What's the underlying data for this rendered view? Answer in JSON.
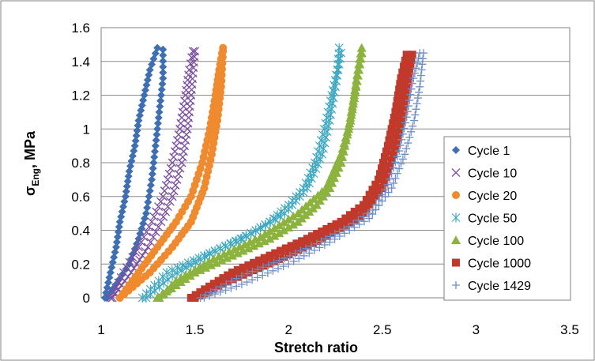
{
  "chart_data": {
    "type": "scatter",
    "title": "",
    "xlabel": "Stretch ratio",
    "ylabel_main": "σ",
    "ylabel_sub": "Eng",
    "ylabel_rest": ", MPa",
    "xlim": [
      1,
      3.5
    ],
    "ylim": [
      0,
      1.6
    ],
    "xticks": [
      "1",
      "1.5",
      "2",
      "2.5",
      "3",
      "3.5"
    ],
    "yticks": [
      "0",
      "0.2",
      "0.4",
      "0.6",
      "0.8",
      "1",
      "1.2",
      "1.4",
      "1.6"
    ],
    "grid": "horizontal",
    "legend_position": "right",
    "series": [
      {
        "name": "Cycle 1",
        "marker": "diamond",
        "color": "#3F6FB3",
        "loading": [
          [
            1.02,
            0
          ],
          [
            1.05,
            0.15
          ],
          [
            1.08,
            0.3
          ],
          [
            1.1,
            0.45
          ],
          [
            1.13,
            0.6
          ],
          [
            1.15,
            0.75
          ],
          [
            1.18,
            0.9
          ],
          [
            1.2,
            1.05
          ],
          [
            1.23,
            1.2
          ],
          [
            1.26,
            1.35
          ],
          [
            1.3,
            1.48
          ]
        ],
        "unloading": [
          [
            1.33,
            1.47
          ],
          [
            1.33,
            1.3
          ],
          [
            1.31,
            1.1
          ],
          [
            1.29,
            0.9
          ],
          [
            1.27,
            0.7
          ],
          [
            1.24,
            0.5
          ],
          [
            1.2,
            0.35
          ],
          [
            1.15,
            0.2
          ],
          [
            1.08,
            0.08
          ],
          [
            1.03,
            0
          ]
        ]
      },
      {
        "name": "Cycle 10",
        "marker": "x",
        "color": "#7B4FA0",
        "loading": [
          [
            1.05,
            0
          ],
          [
            1.12,
            0.15
          ],
          [
            1.2,
            0.3
          ],
          [
            1.27,
            0.45
          ],
          [
            1.33,
            0.6
          ],
          [
            1.38,
            0.8
          ],
          [
            1.42,
            1.0
          ],
          [
            1.45,
            1.2
          ],
          [
            1.47,
            1.35
          ],
          [
            1.49,
            1.46
          ]
        ],
        "unloading": [
          [
            1.5,
            1.46
          ],
          [
            1.48,
            1.2
          ],
          [
            1.46,
            1.0
          ],
          [
            1.43,
            0.8
          ],
          [
            1.38,
            0.6
          ],
          [
            1.32,
            0.45
          ],
          [
            1.25,
            0.3
          ],
          [
            1.16,
            0.15
          ],
          [
            1.06,
            0
          ]
        ]
      },
      {
        "name": "Cycle 20",
        "marker": "circle",
        "color": "#F08A2E",
        "loading": [
          [
            1.1,
            0
          ],
          [
            1.2,
            0.15
          ],
          [
            1.3,
            0.3
          ],
          [
            1.4,
            0.45
          ],
          [
            1.48,
            0.6
          ],
          [
            1.54,
            0.8
          ],
          [
            1.58,
            1.0
          ],
          [
            1.61,
            1.2
          ],
          [
            1.63,
            1.35
          ],
          [
            1.65,
            1.48
          ]
        ],
        "unloading": [
          [
            1.65,
            1.46
          ],
          [
            1.64,
            1.25
          ],
          [
            1.62,
            1.05
          ],
          [
            1.59,
            0.85
          ],
          [
            1.55,
            0.65
          ],
          [
            1.48,
            0.45
          ],
          [
            1.38,
            0.3
          ],
          [
            1.26,
            0.15
          ],
          [
            1.1,
            0
          ]
        ]
      },
      {
        "name": "Cycle 50",
        "marker": "asterisk",
        "color": "#3FA9C2",
        "loading": [
          [
            1.22,
            0
          ],
          [
            1.35,
            0.15
          ],
          [
            1.55,
            0.25
          ],
          [
            1.75,
            0.35
          ],
          [
            1.9,
            0.45
          ],
          [
            2.0,
            0.55
          ],
          [
            2.08,
            0.65
          ],
          [
            2.14,
            0.8
          ],
          [
            2.19,
            1.0
          ],
          [
            2.23,
            1.2
          ],
          [
            2.26,
            1.35
          ],
          [
            2.27,
            1.48
          ]
        ],
        "unloading": [
          [
            2.28,
            1.45
          ],
          [
            2.25,
            1.25
          ],
          [
            2.22,
            1.05
          ],
          [
            2.18,
            0.85
          ],
          [
            2.1,
            0.65
          ],
          [
            1.98,
            0.5
          ],
          [
            1.8,
            0.38
          ],
          [
            1.58,
            0.26
          ],
          [
            1.38,
            0.13
          ],
          [
            1.24,
            0
          ]
        ]
      },
      {
        "name": "Cycle 100",
        "marker": "triangle",
        "color": "#8DB33F",
        "loading": [
          [
            1.3,
            0
          ],
          [
            1.5,
            0.15
          ],
          [
            1.7,
            0.25
          ],
          [
            1.9,
            0.35
          ],
          [
            2.05,
            0.45
          ],
          [
            2.15,
            0.55
          ],
          [
            2.22,
            0.65
          ],
          [
            2.28,
            0.8
          ],
          [
            2.32,
            1.0
          ],
          [
            2.35,
            1.2
          ],
          [
            2.37,
            1.35
          ],
          [
            2.39,
            1.48
          ]
        ],
        "unloading": [
          [
            2.39,
            1.45
          ],
          [
            2.36,
            1.25
          ],
          [
            2.33,
            1.05
          ],
          [
            2.28,
            0.85
          ],
          [
            2.2,
            0.65
          ],
          [
            2.05,
            0.5
          ],
          [
            1.85,
            0.36
          ],
          [
            1.6,
            0.23
          ],
          [
            1.4,
            0.1
          ],
          [
            1.31,
            0
          ]
        ]
      },
      {
        "name": "Cycle 1000",
        "marker": "square",
        "color": "#C0392B",
        "loading": [
          [
            1.48,
            0
          ],
          [
            1.7,
            0.15
          ],
          [
            1.9,
            0.25
          ],
          [
            2.1,
            0.35
          ],
          [
            2.28,
            0.45
          ],
          [
            2.4,
            0.55
          ],
          [
            2.48,
            0.7
          ],
          [
            2.53,
            0.9
          ],
          [
            2.57,
            1.1
          ],
          [
            2.6,
            1.3
          ],
          [
            2.63,
            1.44
          ]
        ],
        "unloading": [
          [
            2.66,
            1.44
          ],
          [
            2.63,
            1.25
          ],
          [
            2.6,
            1.05
          ],
          [
            2.56,
            0.85
          ],
          [
            2.5,
            0.65
          ],
          [
            2.38,
            0.48
          ],
          [
            2.18,
            0.35
          ],
          [
            1.95,
            0.23
          ],
          [
            1.7,
            0.11
          ],
          [
            1.5,
            0
          ]
        ]
      },
      {
        "name": "Cycle 1429",
        "marker": "plus",
        "color": "#6F8FC8",
        "loading": [
          [
            1.53,
            0
          ],
          [
            1.75,
            0.13
          ],
          [
            1.95,
            0.22
          ],
          [
            2.15,
            0.32
          ],
          [
            2.32,
            0.42
          ],
          [
            2.45,
            0.52
          ],
          [
            2.53,
            0.67
          ],
          [
            2.59,
            0.87
          ],
          [
            2.63,
            1.07
          ],
          [
            2.66,
            1.27
          ],
          [
            2.7,
            1.45
          ]
        ],
        "unloading": [
          [
            2.72,
            1.45
          ],
          [
            2.7,
            1.25
          ],
          [
            2.67,
            1.05
          ],
          [
            2.62,
            0.85
          ],
          [
            2.55,
            0.65
          ],
          [
            2.43,
            0.47
          ],
          [
            2.22,
            0.33
          ],
          [
            2.0,
            0.2
          ],
          [
            1.75,
            0.08
          ],
          [
            1.55,
            0
          ]
        ]
      }
    ]
  }
}
